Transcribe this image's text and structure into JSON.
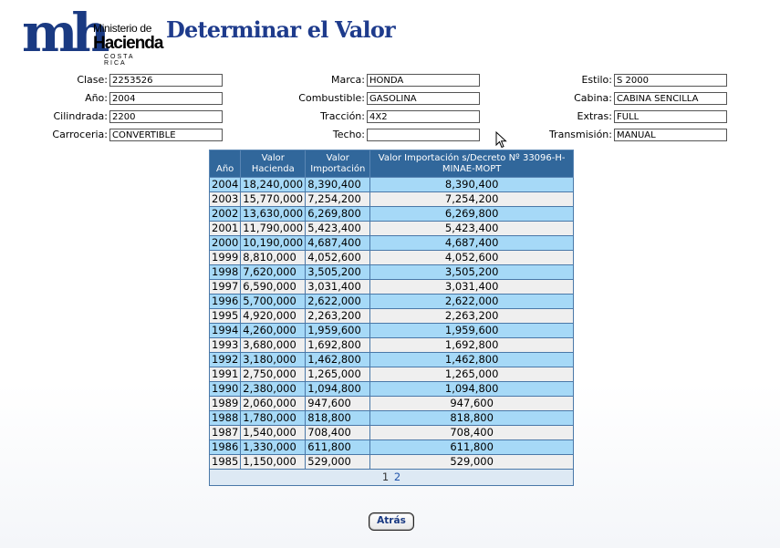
{
  "logo": {
    "mark": "mh",
    "line1": "Ministerio de",
    "line2": "Hacienda",
    "line3": "COSTA RICA"
  },
  "page_title": "Determinar el Valor",
  "fields": {
    "clase": {
      "label": "Clase:",
      "value": "2253526"
    },
    "anio": {
      "label": "Año:",
      "value": "2004"
    },
    "cilindrada": {
      "label": "Cilindrada:",
      "value": "2200"
    },
    "carroceria": {
      "label": "Carroceria:",
      "value": "CONVERTIBLE"
    },
    "marca": {
      "label": "Marca:",
      "value": "HONDA"
    },
    "combustible": {
      "label": "Combustible:",
      "value": "GASOLINA"
    },
    "traccion": {
      "label": "Tracción:",
      "value": "4X2"
    },
    "techo": {
      "label": "Techo:",
      "value": ""
    },
    "estilo": {
      "label": "Estilo:",
      "value": "S 2000"
    },
    "cabina": {
      "label": "Cabina:",
      "value": "CABINA SENCILLA"
    },
    "extras": {
      "label": "Extras:",
      "value": "FULL"
    },
    "transmision": {
      "label": "Transmisión:",
      "value": "MANUAL"
    }
  },
  "table": {
    "headers": [
      "Año",
      "Valor Hacienda",
      "Valor Importación",
      "Valor Importación s/Decreto Nº 33096-H-MINAE-MOPT"
    ],
    "rows": [
      [
        "2004",
        "18,240,000",
        "8,390,400",
        "8,390,400"
      ],
      [
        "2003",
        "15,770,000",
        "7,254,200",
        "7,254,200"
      ],
      [
        "2002",
        "13,630,000",
        "6,269,800",
        "6,269,800"
      ],
      [
        "2001",
        "11,790,000",
        "5,423,400",
        "5,423,400"
      ],
      [
        "2000",
        "10,190,000",
        "4,687,400",
        "4,687,400"
      ],
      [
        "1999",
        "8,810,000",
        "4,052,600",
        "4,052,600"
      ],
      [
        "1998",
        "7,620,000",
        "3,505,200",
        "3,505,200"
      ],
      [
        "1997",
        "6,590,000",
        "3,031,400",
        "3,031,400"
      ],
      [
        "1996",
        "5,700,000",
        "2,622,000",
        "2,622,000"
      ],
      [
        "1995",
        "4,920,000",
        "2,263,200",
        "2,263,200"
      ],
      [
        "1994",
        "4,260,000",
        "1,959,600",
        "1,959,600"
      ],
      [
        "1993",
        "3,680,000",
        "1,692,800",
        "1,692,800"
      ],
      [
        "1992",
        "3,180,000",
        "1,462,800",
        "1,462,800"
      ],
      [
        "1991",
        "2,750,000",
        "1,265,000",
        "1,265,000"
      ],
      [
        "1990",
        "2,380,000",
        "1,094,800",
        "1,094,800"
      ],
      [
        "1989",
        "2,060,000",
        "947,600",
        "947,600"
      ],
      [
        "1988",
        "1,780,000",
        "818,800",
        "818,800"
      ],
      [
        "1987",
        "1,540,000",
        "708,400",
        "708,400"
      ],
      [
        "1986",
        "1,330,000",
        "611,800",
        "611,800"
      ],
      [
        "1985",
        "1,150,000",
        "529,000",
        "529,000"
      ]
    ],
    "pages": [
      "1",
      "2"
    ],
    "current_page": "1"
  },
  "back_button": "Atrás",
  "colors": {
    "title": "#1e3b8c",
    "header": "#31679b",
    "row_alt": "#a6d9f7",
    "row": "#efefef"
  }
}
